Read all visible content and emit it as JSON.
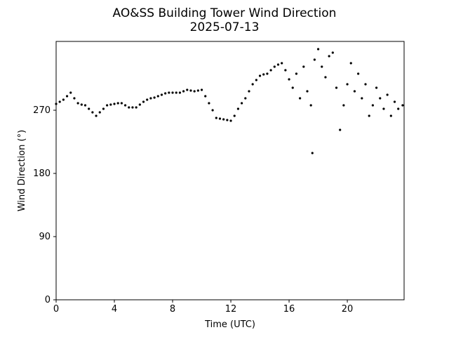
{
  "chart_data": {
    "type": "scatter",
    "title": "AO&SS Building Tower Wind Direction",
    "subtitle": "2025-07-13",
    "x_label": "Time (UTC)",
    "y_label": "Wind Direction (°)",
    "color": "#000000",
    "xlim": [
      0,
      23.9
    ],
    "ylim": [
      0,
      368
    ],
    "xticks": [
      0,
      4,
      8,
      12,
      16,
      20
    ],
    "yticks": [
      0,
      90,
      180,
      270
    ],
    "x": [
      0,
      0.25,
      0.5,
      0.75,
      1,
      1.25,
      1.5,
      1.75,
      2,
      2.25,
      2.5,
      2.75,
      3,
      3.25,
      3.5,
      3.75,
      4,
      4.25,
      4.5,
      4.75,
      5,
      5.25,
      5.5,
      5.75,
      6,
      6.25,
      6.5,
      6.75,
      7,
      7.25,
      7.5,
      7.75,
      8,
      8.25,
      8.5,
      8.75,
      9,
      9.25,
      9.5,
      9.75,
      10,
      10.25,
      10.5,
      10.75,
      11,
      11.25,
      11.5,
      11.75,
      12,
      12.25,
      12.5,
      12.75,
      13,
      13.25,
      13.5,
      13.75,
      14,
      14.25,
      14.5,
      14.75,
      15,
      15.25,
      15.5,
      15.75,
      16,
      16.25,
      16.5,
      16.75,
      17,
      17.25,
      17.5,
      17.6,
      17.75,
      18,
      18.25,
      18.5,
      18.75,
      19,
      19.25,
      19.5,
      19.75,
      20,
      20.25,
      20.5,
      20.75,
      21,
      21.25,
      21.5,
      21.75,
      22,
      22.25,
      22.5,
      22.75,
      23,
      23.25,
      23.5,
      23.8
    ],
    "values": [
      279,
      282,
      285,
      290,
      295,
      287,
      280,
      278,
      277,
      272,
      267,
      262,
      267,
      272,
      277,
      278,
      279,
      280,
      280,
      277,
      274,
      274,
      274,
      278,
      282,
      285,
      287,
      288,
      290,
      292,
      294,
      295,
      295,
      295,
      295,
      297,
      299,
      298,
      297,
      298,
      299,
      290,
      280,
      270,
      259,
      258,
      257,
      256,
      255,
      262,
      272,
      280,
      287,
      297,
      307,
      313,
      319,
      321,
      322,
      327,
      332,
      335,
      337,
      327,
      314,
      302,
      322,
      287,
      332,
      297,
      277,
      209,
      342,
      357,
      332,
      317,
      347,
      352,
      302,
      242,
      277,
      307,
      337,
      297,
      322,
      287,
      307,
      262,
      277,
      302,
      287,
      272,
      292,
      262,
      282,
      272,
      277
    ]
  }
}
